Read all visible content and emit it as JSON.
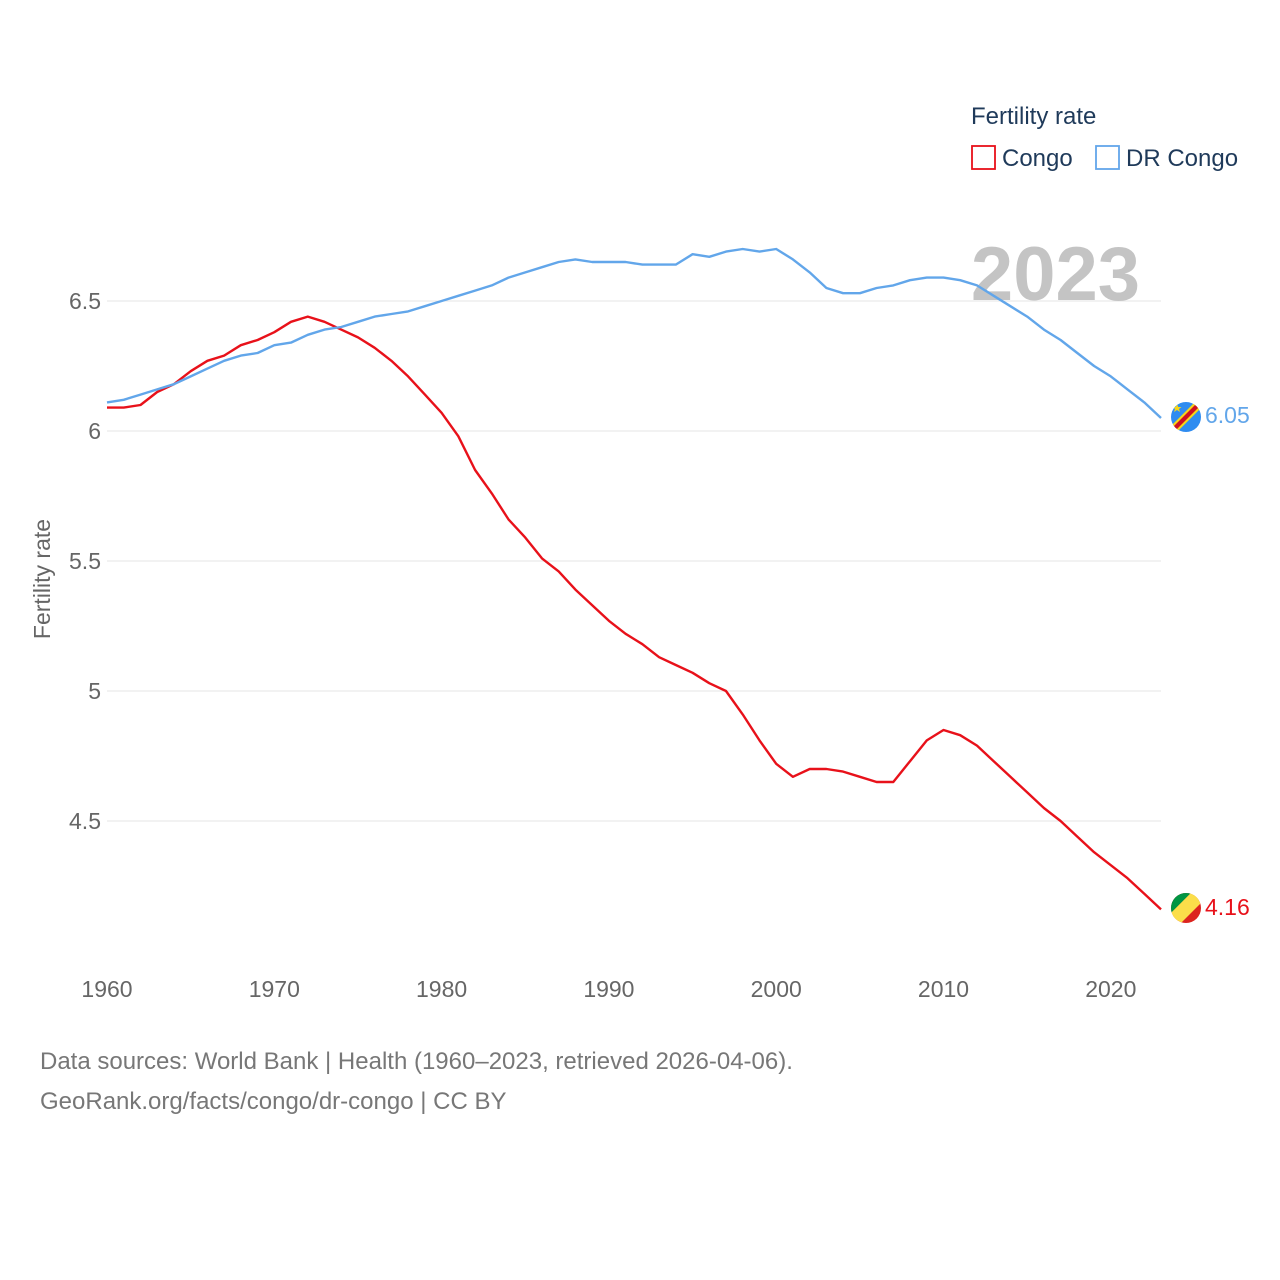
{
  "chart_data": {
    "type": "line",
    "title": "",
    "ylabel": "Fertility rate",
    "xlabel": "",
    "ylim": [
      4.0,
      6.95
    ],
    "xlim": [
      1960,
      2023
    ],
    "yticks": [
      4.5,
      5,
      5.5,
      6,
      6.5
    ],
    "ytick_labels": [
      "4.5",
      "5",
      "5.5",
      "6",
      "6.5"
    ],
    "xticks": [
      1960,
      1970,
      1980,
      1990,
      2000,
      2010,
      2020
    ],
    "xtick_labels": [
      "1960",
      "1970",
      "1980",
      "1990",
      "2000",
      "2010",
      "2020"
    ],
    "year_label": "2023",
    "legend": {
      "title": "Fertility rate",
      "position": "top-right"
    },
    "x": [
      1960,
      1961,
      1962,
      1963,
      1964,
      1965,
      1966,
      1967,
      1968,
      1969,
      1970,
      1971,
      1972,
      1973,
      1974,
      1975,
      1976,
      1977,
      1978,
      1979,
      1980,
      1981,
      1982,
      1983,
      1984,
      1985,
      1986,
      1987,
      1988,
      1989,
      1990,
      1991,
      1992,
      1993,
      1994,
      1995,
      1996,
      1997,
      1998,
      1999,
      2000,
      2001,
      2002,
      2003,
      2004,
      2005,
      2006,
      2007,
      2008,
      2009,
      2010,
      2011,
      2012,
      2013,
      2014,
      2015,
      2016,
      2017,
      2018,
      2019,
      2020,
      2021,
      2022,
      2023
    ],
    "series": [
      {
        "name": "Congo",
        "color": "#e8111a",
        "end_label": "4.16",
        "flag": "congo",
        "values": [
          6.09,
          6.09,
          6.1,
          6.15,
          6.18,
          6.23,
          6.27,
          6.29,
          6.33,
          6.35,
          6.38,
          6.42,
          6.44,
          6.42,
          6.39,
          6.36,
          6.32,
          6.27,
          6.21,
          6.14,
          6.07,
          5.98,
          5.85,
          5.76,
          5.66,
          5.59,
          5.51,
          5.46,
          5.39,
          5.33,
          5.27,
          5.22,
          5.18,
          5.13,
          5.1,
          5.07,
          5.03,
          5.0,
          4.91,
          4.81,
          4.72,
          4.67,
          4.7,
          4.7,
          4.69,
          4.67,
          4.65,
          4.65,
          4.73,
          4.81,
          4.85,
          4.83,
          4.79,
          4.73,
          4.67,
          4.61,
          4.55,
          4.5,
          4.44,
          4.38,
          4.33,
          4.28,
          4.22,
          4.16
        ]
      },
      {
        "name": "DR Congo",
        "color": "#62a6ea",
        "end_label": "6.05",
        "flag": "dr-congo",
        "values": [
          6.11,
          6.12,
          6.14,
          6.16,
          6.18,
          6.21,
          6.24,
          6.27,
          6.29,
          6.3,
          6.33,
          6.34,
          6.37,
          6.39,
          6.4,
          6.42,
          6.44,
          6.45,
          6.46,
          6.48,
          6.5,
          6.52,
          6.54,
          6.56,
          6.59,
          6.61,
          6.63,
          6.65,
          6.66,
          6.65,
          6.65,
          6.65,
          6.64,
          6.64,
          6.64,
          6.68,
          6.67,
          6.69,
          6.7,
          6.69,
          6.7,
          6.66,
          6.61,
          6.55,
          6.53,
          6.53,
          6.55,
          6.56,
          6.58,
          6.59,
          6.59,
          6.58,
          6.56,
          6.52,
          6.48,
          6.44,
          6.39,
          6.35,
          6.3,
          6.25,
          6.21,
          6.16,
          6.11,
          6.05
        ]
      }
    ]
  },
  "footer": {
    "source_line": "Data sources: World Bank | Health (1960–2023, retrieved 2026-04-06).",
    "credit_line": "GeoRank.org/facts/congo/dr-congo | CC BY"
  }
}
